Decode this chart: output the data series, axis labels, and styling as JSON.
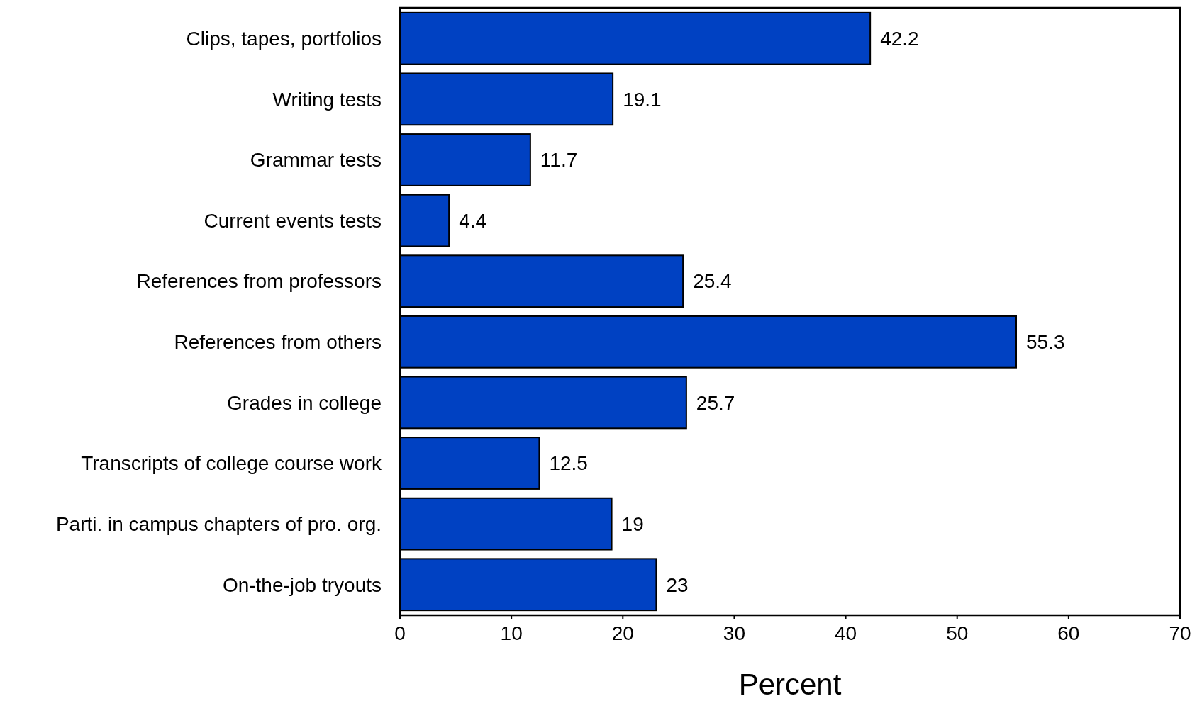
{
  "chart_data": {
    "type": "bar",
    "orientation": "horizontal",
    "xlabel": "Percent",
    "categories": [
      "Clips, tapes, portfolios",
      "Writing tests",
      "Grammar tests",
      "Current events tests",
      "References from professors",
      "References from others",
      "Grades in college",
      "Transcripts of college course work",
      "Parti. in campus chapters of pro. org.",
      "On-the-job tryouts"
    ],
    "values": [
      42.2,
      19.1,
      11.7,
      4.4,
      25.4,
      55.3,
      25.7,
      12.5,
      19,
      23
    ],
    "color": "#0041c2",
    "xlim": [
      0,
      70
    ],
    "xticks": [
      0,
      10,
      20,
      30,
      40,
      50,
      60,
      70
    ],
    "data_labels": true,
    "grid": false
  }
}
